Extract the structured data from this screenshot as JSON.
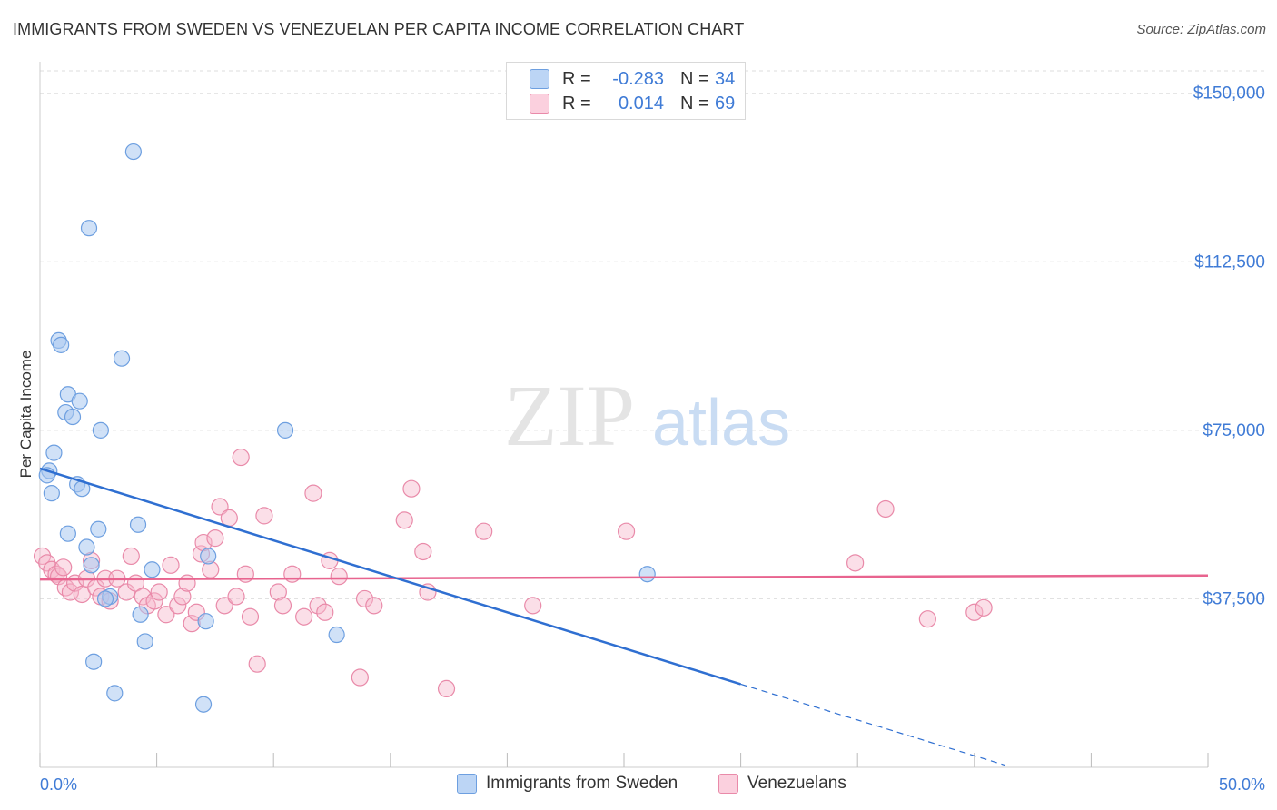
{
  "title": "IMMIGRANTS FROM SWEDEN VS VENEZUELAN PER CAPITA INCOME CORRELATION CHART",
  "source": "Source: ZipAtlas.com",
  "watermark": {
    "zip": "ZIP",
    "atlas": "atlas"
  },
  "legend_top": [
    {
      "r_label": "R =",
      "r_value": "-0.283",
      "n_label": "N =",
      "n_value": "34"
    },
    {
      "r_label": "R =",
      "r_value": "0.014",
      "n_label": "N =",
      "n_value": "69"
    }
  ],
  "legend_bottom": [
    "Immigrants from Sweden",
    "Venezuelans"
  ],
  "colors": {
    "sweden_fill": "#a9c8f0",
    "sweden_stroke": "#6d9fe0",
    "sweden_line": "#2f6fd1",
    "venez_fill": "#f6b8cb",
    "venez_stroke": "#e98aa9",
    "venez_line": "#e8648f",
    "tick_label": "#3f7bd6",
    "grid": "#dddddd"
  },
  "chart_data": {
    "type": "scatter",
    "title": "IMMIGRANTS FROM SWEDEN VS VENEZUELAN PER CAPITA INCOME CORRELATION CHART",
    "xlabel": "",
    "ylabel": "Per Capita Income",
    "xlim": [
      0,
      50
    ],
    "ylim": [
      0,
      155000
    ],
    "x_tick_labels": [
      "0.0%",
      "50.0%"
    ],
    "y_ticks": [
      37500,
      75000,
      112500,
      150000
    ],
    "y_tick_labels": [
      "$37,500",
      "$75,000",
      "$112,500",
      "$150,000"
    ],
    "grid": "horizontal dashed",
    "legend_position": "top-center",
    "series": [
      {
        "name": "Immigrants from Sweden",
        "points": [
          [
            4.0,
            137000
          ],
          [
            2.1,
            120000
          ],
          [
            0.8,
            95000
          ],
          [
            0.9,
            94000
          ],
          [
            3.5,
            91000
          ],
          [
            1.2,
            83000
          ],
          [
            1.7,
            81500
          ],
          [
            1.1,
            79000
          ],
          [
            1.4,
            78000
          ],
          [
            2.6,
            75000
          ],
          [
            10.5,
            75000
          ],
          [
            0.6,
            70000
          ],
          [
            0.4,
            66000
          ],
          [
            0.3,
            65000
          ],
          [
            1.6,
            63000
          ],
          [
            1.8,
            62000
          ],
          [
            0.5,
            61000
          ],
          [
            4.2,
            54000
          ],
          [
            2.5,
            53000
          ],
          [
            1.2,
            52000
          ],
          [
            2.0,
            49000
          ],
          [
            7.2,
            47000
          ],
          [
            2.2,
            45000
          ],
          [
            4.8,
            44000
          ],
          [
            26.0,
            43000
          ],
          [
            3.0,
            38000
          ],
          [
            2.8,
            37500
          ],
          [
            4.3,
            34000
          ],
          [
            7.1,
            32500
          ],
          [
            12.7,
            29500
          ],
          [
            4.5,
            28000
          ],
          [
            2.3,
            23500
          ],
          [
            3.2,
            16500
          ],
          [
            7.0,
            14000
          ]
        ],
        "trend": {
          "x_solid": [
            0,
            30
          ],
          "y_solid": [
            66500,
            18500
          ],
          "x_dashed": [
            30,
            41.3
          ],
          "y_dashed": [
            18500,
            500
          ]
        }
      },
      {
        "name": "Venezuelans",
        "points": [
          [
            0.1,
            47000
          ],
          [
            0.3,
            45500
          ],
          [
            0.5,
            44000
          ],
          [
            0.7,
            43000
          ],
          [
            0.8,
            42500
          ],
          [
            1.0,
            44500
          ],
          [
            1.1,
            40000
          ],
          [
            1.3,
            39000
          ],
          [
            1.5,
            41000
          ],
          [
            1.8,
            38500
          ],
          [
            2.0,
            42000
          ],
          [
            2.2,
            46000
          ],
          [
            2.4,
            40000
          ],
          [
            2.6,
            38000
          ],
          [
            2.8,
            42000
          ],
          [
            3.0,
            37000
          ],
          [
            3.3,
            42000
          ],
          [
            3.7,
            39000
          ],
          [
            3.9,
            47000
          ],
          [
            4.1,
            41000
          ],
          [
            4.4,
            38000
          ],
          [
            4.6,
            36000
          ],
          [
            4.9,
            37000
          ],
          [
            5.1,
            39000
          ],
          [
            5.4,
            34000
          ],
          [
            5.6,
            45000
          ],
          [
            5.9,
            36000
          ],
          [
            6.1,
            38000
          ],
          [
            6.3,
            41000
          ],
          [
            6.5,
            32000
          ],
          [
            6.7,
            34500
          ],
          [
            6.9,
            47500
          ],
          [
            7.0,
            50000
          ],
          [
            7.3,
            44000
          ],
          [
            7.5,
            51000
          ],
          [
            7.7,
            58000
          ],
          [
            7.9,
            36000
          ],
          [
            8.1,
            55500
          ],
          [
            8.4,
            38000
          ],
          [
            8.6,
            69000
          ],
          [
            8.8,
            43000
          ],
          [
            9.0,
            33500
          ],
          [
            9.3,
            23000
          ],
          [
            9.6,
            56000
          ],
          [
            10.2,
            39000
          ],
          [
            10.4,
            36000
          ],
          [
            10.8,
            43000
          ],
          [
            11.3,
            33500
          ],
          [
            11.7,
            61000
          ],
          [
            11.9,
            36000
          ],
          [
            12.2,
            34500
          ],
          [
            12.4,
            46000
          ],
          [
            12.8,
            42500
          ],
          [
            13.7,
            20000
          ],
          [
            13.9,
            37500
          ],
          [
            14.3,
            36000
          ],
          [
            15.6,
            55000
          ],
          [
            15.9,
            62000
          ],
          [
            16.4,
            48000
          ],
          [
            16.6,
            39000
          ],
          [
            17.4,
            17500
          ],
          [
            19.0,
            52500
          ],
          [
            21.1,
            36000
          ],
          [
            25.1,
            52500
          ],
          [
            34.9,
            45500
          ],
          [
            36.2,
            57500
          ],
          [
            38.0,
            33000
          ],
          [
            40.0,
            34500
          ],
          [
            40.4,
            35500
          ]
        ],
        "trend": {
          "x": [
            0,
            50
          ],
          "y": [
            41800,
            42700
          ]
        }
      }
    ]
  }
}
